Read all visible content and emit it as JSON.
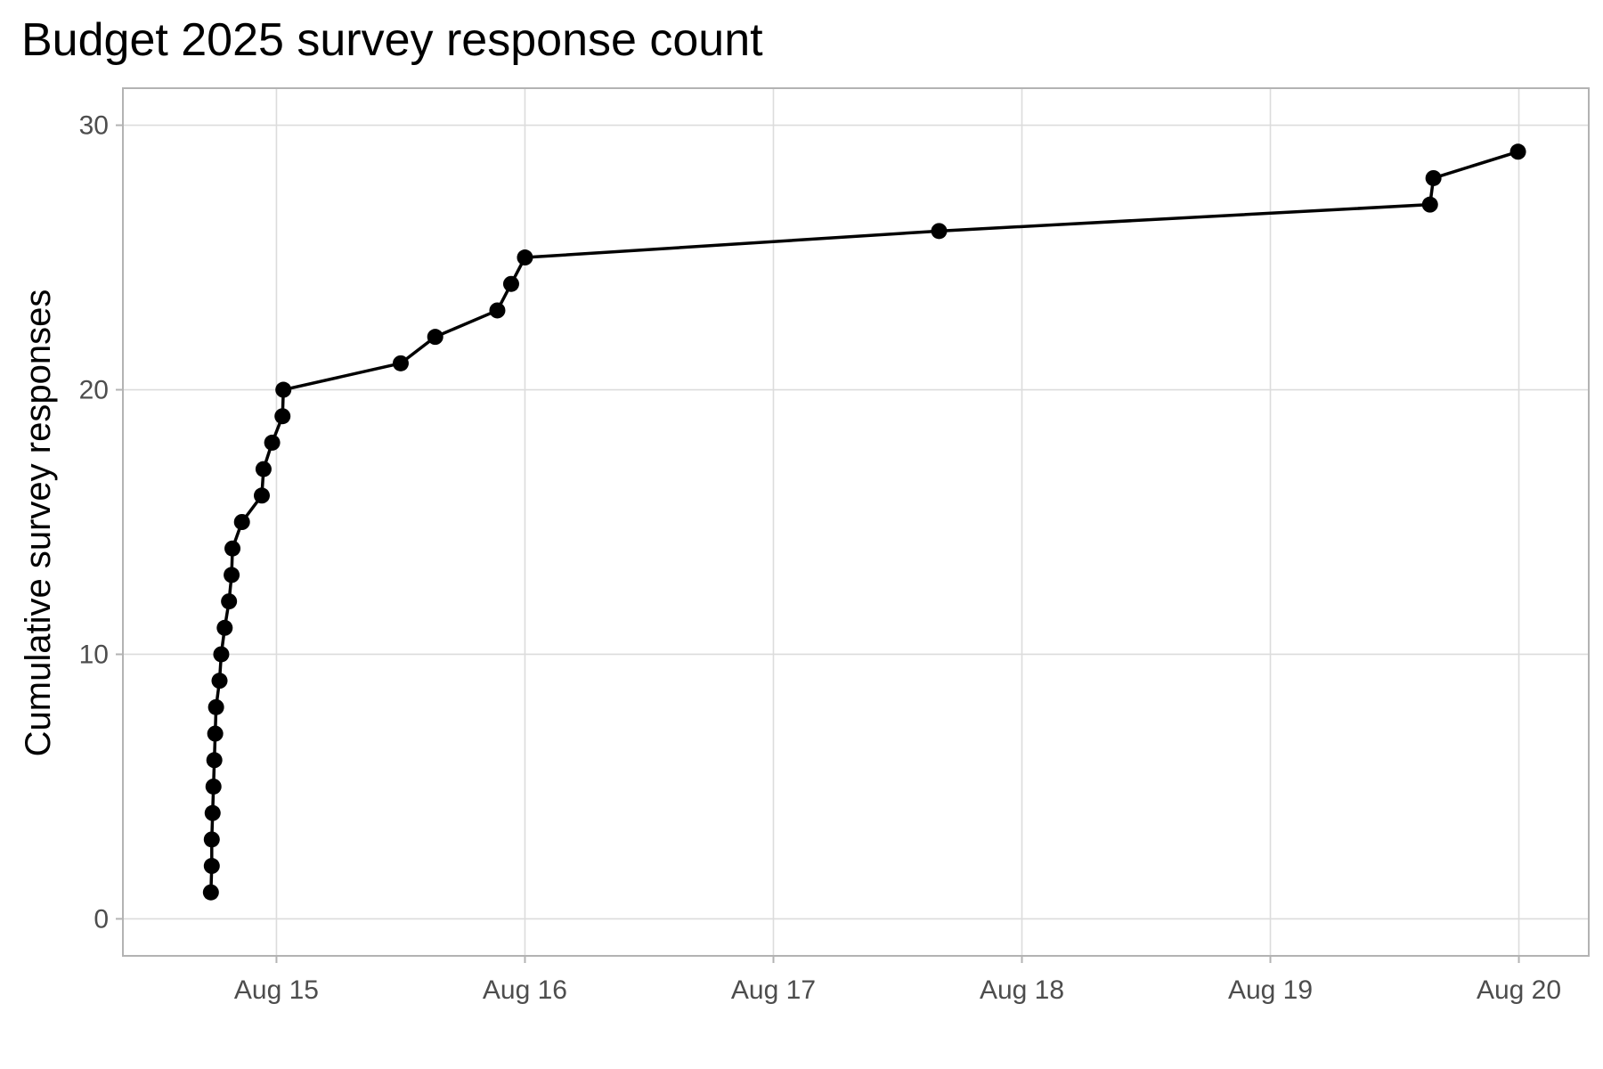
{
  "chart_data": {
    "type": "line",
    "title": "Budget 2025 survey response count",
    "xlabel": "",
    "ylabel": "Cumulative survey responses",
    "x_ticks": [
      "Aug 15",
      "Aug 16",
      "Aug 17",
      "Aug 18",
      "Aug 19",
      "Aug 20"
    ],
    "y_ticks": [
      0,
      10,
      20,
      30
    ],
    "ylim": [
      -1.4,
      31.4
    ],
    "xlim": [
      "Aug 14 09:10",
      "Aug 20 06:45"
    ],
    "grid": true,
    "legend": "none",
    "series": [
      {
        "color": "#000000",
        "points": [
          {
            "x": "Aug 14 17:40",
            "y": 1
          },
          {
            "x": "Aug 14 17:45",
            "y": 2
          },
          {
            "x": "Aug 14 17:45",
            "y": 3
          },
          {
            "x": "Aug 14 17:50",
            "y": 4
          },
          {
            "x": "Aug 14 17:55",
            "y": 5
          },
          {
            "x": "Aug 14 18:00",
            "y": 6
          },
          {
            "x": "Aug 14 18:05",
            "y": 7
          },
          {
            "x": "Aug 14 18:10",
            "y": 8
          },
          {
            "x": "Aug 14 18:30",
            "y": 9
          },
          {
            "x": "Aug 14 18:40",
            "y": 10
          },
          {
            "x": "Aug 14 19:00",
            "y": 11
          },
          {
            "x": "Aug 14 19:25",
            "y": 12
          },
          {
            "x": "Aug 14 19:40",
            "y": 13
          },
          {
            "x": "Aug 14 19:45",
            "y": 14
          },
          {
            "x": "Aug 14 20:40",
            "y": 15
          },
          {
            "x": "Aug 14 22:35",
            "y": 16
          },
          {
            "x": "Aug 14 22:45",
            "y": 17
          },
          {
            "x": "Aug 14 23:35",
            "y": 18
          },
          {
            "x": "Aug 15 00:35",
            "y": 19
          },
          {
            "x": "Aug 15 00:40",
            "y": 20
          },
          {
            "x": "Aug 15 12:00",
            "y": 21
          },
          {
            "x": "Aug 15 15:20",
            "y": 22
          },
          {
            "x": "Aug 15 21:20",
            "y": 23
          },
          {
            "x": "Aug 15 22:40",
            "y": 24
          },
          {
            "x": "Aug 16 00:00",
            "y": 25
          },
          {
            "x": "Aug 17 16:00",
            "y": 26
          },
          {
            "x": "Aug 19 15:25",
            "y": 27
          },
          {
            "x": "Aug 19 15:45",
            "y": 28
          },
          {
            "x": "Aug 19 23:55",
            "y": 29
          }
        ]
      }
    ]
  }
}
